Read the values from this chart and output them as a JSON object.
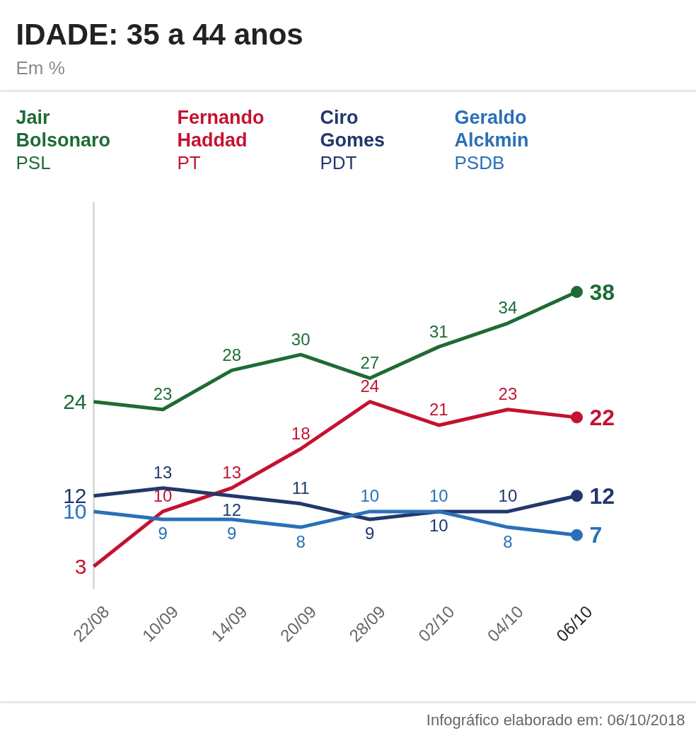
{
  "chart_data": {
    "type": "line",
    "title": "IDADE: 35 a 44 anos",
    "subtitle": "Em %",
    "data_labels": true,
    "legend": "top",
    "categories": [
      "22/08",
      "10/09",
      "14/09",
      "20/09",
      "28/09",
      "02/10",
      "04/10",
      "06/10"
    ],
    "series": [
      {
        "name": "Jair Bolsonaro\nPSL",
        "color": "#1e6b35",
        "values": [
          24,
          23,
          28,
          30,
          27,
          31,
          34,
          38
        ]
      },
      {
        "name": "Fernando Haddad\nPT",
        "color": "#c41230",
        "values": [
          3,
          10,
          13,
          18,
          24,
          21,
          23,
          22
        ]
      },
      {
        "name": "Ciro Gomes\nPDT",
        "color": "#22386b",
        "values": [
          12,
          13,
          12,
          11,
          9,
          10,
          10,
          12
        ]
      },
      {
        "name": "Geraldo Alckmin\nPSDB",
        "color": "#2a70b8",
        "values": [
          10,
          9,
          9,
          8,
          10,
          10,
          8,
          7
        ]
      }
    ],
    "annotations": [
      "Infográfico elaborado em: 06/10/2018"
    ]
  }
}
